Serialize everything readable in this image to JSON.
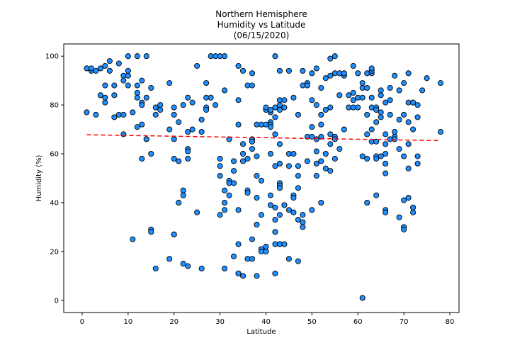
{
  "chart_data": {
    "type": "scatter",
    "title_lines": [
      "Northern Hemisphere",
      "Humidity vs Latitude",
      "(06/15/2020)"
    ],
    "xlabel": "Latitude",
    "ylabel": "Humidity (%)",
    "xlim": [
      -4,
      82
    ],
    "ylim": [
      -5,
      105
    ],
    "xticks": [
      0,
      10,
      20,
      30,
      40,
      50,
      60,
      70,
      80
    ],
    "yticks": [
      0,
      20,
      40,
      60,
      80,
      100
    ],
    "grid": false,
    "marker_color": "#1f8fff",
    "marker_edge_color": "#000000",
    "regression": {
      "x": [
        1,
        78
      ],
      "y": [
        67.8,
        65.4
      ],
      "color": "#ff0000",
      "style": "dashed"
    },
    "points": [
      [
        1,
        77
      ],
      [
        1,
        95
      ],
      [
        2,
        94
      ],
      [
        2,
        95
      ],
      [
        3,
        76
      ],
      [
        3,
        94
      ],
      [
        4,
        95
      ],
      [
        4,
        84
      ],
      [
        5,
        96
      ],
      [
        5,
        88
      ],
      [
        5,
        81
      ],
      [
        5,
        83
      ],
      [
        6,
        94
      ],
      [
        6,
        98
      ],
      [
        7,
        88
      ],
      [
        7,
        84
      ],
      [
        7,
        75
      ],
      [
        8,
        76
      ],
      [
        8,
        97
      ],
      [
        9,
        76
      ],
      [
        9,
        68
      ],
      [
        9,
        92
      ],
      [
        9,
        90
      ],
      [
        10,
        88
      ],
      [
        10,
        100
      ],
      [
        10,
        92
      ],
      [
        10,
        94
      ],
      [
        11,
        25
      ],
      [
        11,
        77
      ],
      [
        12,
        100
      ],
      [
        12,
        85
      ],
      [
        12,
        83
      ],
      [
        12,
        88
      ],
      [
        12,
        71
      ],
      [
        13,
        90
      ],
      [
        13,
        81
      ],
      [
        13,
        80
      ],
      [
        13,
        58
      ],
      [
        13,
        72
      ],
      [
        14,
        66
      ],
      [
        14,
        66
      ],
      [
        14,
        83
      ],
      [
        14,
        100
      ],
      [
        15,
        87
      ],
      [
        15,
        60
      ],
      [
        15,
        29
      ],
      [
        15,
        28
      ],
      [
        16,
        76
      ],
      [
        16,
        79
      ],
      [
        16,
        13
      ],
      [
        17,
        80
      ],
      [
        17,
        78
      ],
      [
        19,
        89
      ],
      [
        19,
        70
      ],
      [
        19,
        17
      ],
      [
        20,
        79
      ],
      [
        20,
        76
      ],
      [
        20,
        66
      ],
      [
        20,
        58
      ],
      [
        20,
        27
      ],
      [
        20,
        27
      ],
      [
        21,
        57
      ],
      [
        21,
        73
      ],
      [
        21,
        40
      ],
      [
        22,
        80
      ],
      [
        22,
        45
      ],
      [
        22,
        43
      ],
      [
        22,
        15
      ],
      [
        23,
        83
      ],
      [
        23,
        69
      ],
      [
        23,
        62
      ],
      [
        23,
        61
      ],
      [
        23,
        58
      ],
      [
        23,
        14
      ],
      [
        24,
        81
      ],
      [
        24,
        70
      ],
      [
        25,
        96
      ],
      [
        25,
        36
      ],
      [
        26,
        69
      ],
      [
        26,
        74
      ],
      [
        26,
        13
      ],
      [
        27,
        79
      ],
      [
        27,
        78
      ],
      [
        27,
        89
      ],
      [
        27,
        83
      ],
      [
        28,
        83
      ],
      [
        28,
        100
      ],
      [
        29,
        80
      ],
      [
        29,
        100
      ],
      [
        30,
        100
      ],
      [
        30,
        55
      ],
      [
        30,
        51
      ],
      [
        30,
        58
      ],
      [
        30,
        35
      ],
      [
        31,
        86
      ],
      [
        31,
        100
      ],
      [
        31,
        45
      ],
      [
        31,
        40
      ],
      [
        31,
        37
      ],
      [
        31,
        13
      ],
      [
        32,
        49
      ],
      [
        32,
        43
      ],
      [
        32,
        66
      ],
      [
        32,
        48
      ],
      [
        33,
        18
      ],
      [
        33,
        53
      ],
      [
        33,
        48
      ],
      [
        33,
        57
      ],
      [
        34,
        72
      ],
      [
        34,
        11
      ],
      [
        34,
        11
      ],
      [
        34,
        37
      ],
      [
        34,
        23
      ],
      [
        34,
        82
      ],
      [
        34,
        96
      ],
      [
        35,
        57
      ],
      [
        35,
        64
      ],
      [
        35,
        60
      ],
      [
        35,
        10
      ],
      [
        35,
        94
      ],
      [
        36,
        88
      ],
      [
        36,
        58
      ],
      [
        36,
        45
      ],
      [
        36,
        44
      ],
      [
        36,
        17
      ],
      [
        37,
        93
      ],
      [
        37,
        88
      ],
      [
        37,
        66
      ],
      [
        37,
        65
      ],
      [
        37,
        62
      ],
      [
        37,
        25
      ],
      [
        37,
        17
      ],
      [
        38,
        72
      ],
      [
        38,
        59
      ],
      [
        38,
        51
      ],
      [
        38,
        42
      ],
      [
        38,
        31
      ],
      [
        38,
        10
      ],
      [
        39,
        72
      ],
      [
        39,
        49
      ],
      [
        39,
        35
      ],
      [
        39,
        21
      ],
      [
        39,
        20
      ],
      [
        40,
        78
      ],
      [
        40,
        79
      ],
      [
        40,
        72
      ],
      [
        40,
        22
      ],
      [
        40,
        20
      ],
      [
        41,
        77
      ],
      [
        41,
        73
      ],
      [
        41,
        72
      ],
      [
        41,
        71
      ],
      [
        41,
        78
      ],
      [
        41,
        60
      ],
      [
        41,
        43
      ],
      [
        41,
        39
      ],
      [
        42,
        100
      ],
      [
        42,
        79
      ],
      [
        42,
        68
      ],
      [
        42,
        75
      ],
      [
        42,
        55
      ],
      [
        42,
        38
      ],
      [
        42,
        33
      ],
      [
        42,
        28
      ],
      [
        42,
        23
      ],
      [
        42,
        11
      ],
      [
        43,
        94
      ],
      [
        43,
        82
      ],
      [
        43,
        80
      ],
      [
        43,
        78
      ],
      [
        43,
        64
      ],
      [
        43,
        56
      ],
      [
        43,
        48
      ],
      [
        43,
        47
      ],
      [
        43,
        46
      ],
      [
        43,
        35
      ],
      [
        43,
        23
      ],
      [
        43,
        23
      ],
      [
        44,
        82
      ],
      [
        44,
        79
      ],
      [
        44,
        39
      ],
      [
        44,
        23
      ],
      [
        45,
        94
      ],
      [
        45,
        60
      ],
      [
        45,
        55
      ],
      [
        45,
        37
      ],
      [
        45,
        17
      ],
      [
        46,
        83
      ],
      [
        46,
        60
      ],
      [
        46,
        43
      ],
      [
        46,
        42
      ],
      [
        46,
        36
      ],
      [
        47,
        76
      ],
      [
        47,
        55
      ],
      [
        47,
        51
      ],
      [
        47,
        46
      ],
      [
        47,
        33
      ],
      [
        47,
        16
      ],
      [
        48,
        94
      ],
      [
        48,
        88
      ],
      [
        48,
        35
      ],
      [
        48,
        30
      ],
      [
        48,
        32
      ],
      [
        49,
        89
      ],
      [
        49,
        88
      ],
      [
        49,
        67
      ],
      [
        49,
        57
      ],
      [
        50,
        93
      ],
      [
        50,
        82
      ],
      [
        50,
        71
      ],
      [
        50,
        67
      ],
      [
        50,
        37
      ],
      [
        51,
        95
      ],
      [
        51,
        80
      ],
      [
        51,
        66
      ],
      [
        51,
        61
      ],
      [
        51,
        56
      ],
      [
        51,
        51
      ],
      [
        52,
        87
      ],
      [
        52,
        76
      ],
      [
        52,
        72
      ],
      [
        52,
        57
      ],
      [
        52,
        40
      ],
      [
        52,
        67
      ],
      [
        53,
        91
      ],
      [
        53,
        78
      ],
      [
        53,
        60
      ],
      [
        53,
        54
      ],
      [
        54,
        92
      ],
      [
        54,
        79
      ],
      [
        54,
        68
      ],
      [
        54,
        64
      ],
      [
        54,
        53
      ],
      [
        54,
        99
      ],
      [
        55,
        100
      ],
      [
        55,
        93
      ],
      [
        55,
        67
      ],
      [
        55,
        66
      ],
      [
        55,
        58
      ],
      [
        56,
        93
      ],
      [
        56,
        84
      ],
      [
        56,
        62
      ],
      [
        57,
        92
      ],
      [
        57,
        93
      ],
      [
        57,
        70
      ],
      [
        58,
        84
      ],
      [
        58,
        79
      ],
      [
        59,
        79
      ],
      [
        59,
        96
      ],
      [
        59,
        85
      ],
      [
        59,
        82
      ],
      [
        60,
        93
      ],
      [
        60,
        83
      ],
      [
        60,
        79
      ],
      [
        61,
        89
      ],
      [
        61,
        87
      ],
      [
        61,
        83
      ],
      [
        61,
        1
      ],
      [
        61,
        59
      ],
      [
        62,
        93
      ],
      [
        62,
        87
      ],
      [
        62,
        76
      ],
      [
        62,
        68
      ],
      [
        62,
        58
      ],
      [
        62,
        40
      ],
      [
        63,
        93
      ],
      [
        63,
        94
      ],
      [
        63,
        83
      ],
      [
        63,
        79
      ],
      [
        63,
        70
      ],
      [
        63,
        65
      ],
      [
        63,
        95
      ],
      [
        64,
        79
      ],
      [
        64,
        78
      ],
      [
        64,
        73
      ],
      [
        64,
        65
      ],
      [
        64,
        59
      ],
      [
        64,
        58
      ],
      [
        64,
        43
      ],
      [
        65,
        86
      ],
      [
        65,
        84
      ],
      [
        65,
        75
      ],
      [
        65,
        77
      ],
      [
        65,
        59
      ],
      [
        66,
        81
      ],
      [
        66,
        68
      ],
      [
        66,
        64
      ],
      [
        66,
        60
      ],
      [
        66,
        56
      ],
      [
        66,
        52
      ],
      [
        66,
        37
      ],
      [
        66,
        36
      ],
      [
        67,
        87
      ],
      [
        67,
        82
      ],
      [
        67,
        76
      ],
      [
        67,
        66
      ],
      [
        68,
        92
      ],
      [
        68,
        69
      ],
      [
        68,
        67
      ],
      [
        68,
        66
      ],
      [
        69,
        86
      ],
      [
        69,
        74
      ],
      [
        69,
        34
      ],
      [
        69,
        62
      ],
      [
        70,
        89
      ],
      [
        70,
        76
      ],
      [
        70,
        59
      ],
      [
        70,
        41
      ],
      [
        70,
        30
      ],
      [
        70,
        29
      ],
      [
        71,
        93
      ],
      [
        71,
        81
      ],
      [
        71,
        73
      ],
      [
        71,
        64
      ],
      [
        71,
        54
      ],
      [
        71,
        42
      ],
      [
        72,
        81
      ],
      [
        72,
        81
      ],
      [
        72,
        70
      ],
      [
        72,
        38
      ],
      [
        72,
        36
      ],
      [
        73,
        75
      ],
      [
        73,
        80
      ],
      [
        73,
        59
      ],
      [
        73,
        56
      ],
      [
        74,
        86
      ],
      [
        75,
        91
      ],
      [
        78,
        89
      ],
      [
        78,
        69
      ]
    ]
  }
}
